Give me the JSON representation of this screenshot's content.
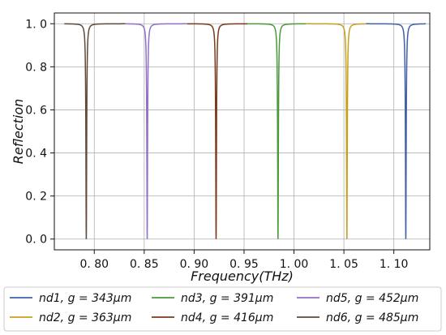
{
  "chart_data": {
    "type": "line",
    "xlabel": "Frequency(THz)",
    "ylabel": "Reflection",
    "xlim": [
      0.76,
      1.136
    ],
    "ylim": [
      -0.05,
      1.05
    ],
    "xticks": [
      0.8,
      0.85,
      0.9,
      0.95,
      1.0,
      1.05,
      1.1
    ],
    "xtick_labels": [
      "0. 80",
      "0. 85",
      "0. 90",
      "0. 95",
      "1. 00",
      "1. 05",
      "1. 10"
    ],
    "yticks": [
      0.0,
      0.2,
      0.4,
      0.6,
      0.8,
      1.0
    ],
    "ytick_labels": [
      "0. 0",
      "0. 2",
      "0. 4",
      "0. 6",
      "0. 8",
      "1. 0"
    ],
    "grid": true,
    "legend_position": "bottom",
    "series": [
      {
        "name": "nd1, g = 343μm",
        "color": "#4060a8",
        "x_range": [
          1.072,
          1.132
        ],
        "resonance": 1.112,
        "min_reflection": 0.0,
        "width": 0.00045
      },
      {
        "name": "nd2, g = 363μm",
        "color": "#c8a020",
        "x_range": [
          1.012,
          1.072
        ],
        "resonance": 1.053,
        "min_reflection": 0.0,
        "width": 0.00045
      },
      {
        "name": "nd3, g = 391μm",
        "color": "#4a9a3a",
        "x_range": [
          0.952,
          1.012
        ],
        "resonance": 0.984,
        "min_reflection": 0.0,
        "width": 0.00045
      },
      {
        "name": "nd4, g = 416μm",
        "color": "#7a3a1a",
        "x_range": [
          0.893,
          0.953
        ],
        "resonance": 0.922,
        "min_reflection": 0.0,
        "width": 0.00045
      },
      {
        "name": "nd5, g = 452μm",
        "color": "#9070c8",
        "x_range": [
          0.831,
          0.893
        ],
        "resonance": 0.853,
        "min_reflection": 0.0,
        "width": 0.00045
      },
      {
        "name": "nd6, g = 485μm",
        "color": "#5e4a3a",
        "x_range": [
          0.77,
          0.831
        ],
        "resonance": 0.792,
        "min_reflection": 0.0,
        "width": 0.00045
      }
    ]
  }
}
